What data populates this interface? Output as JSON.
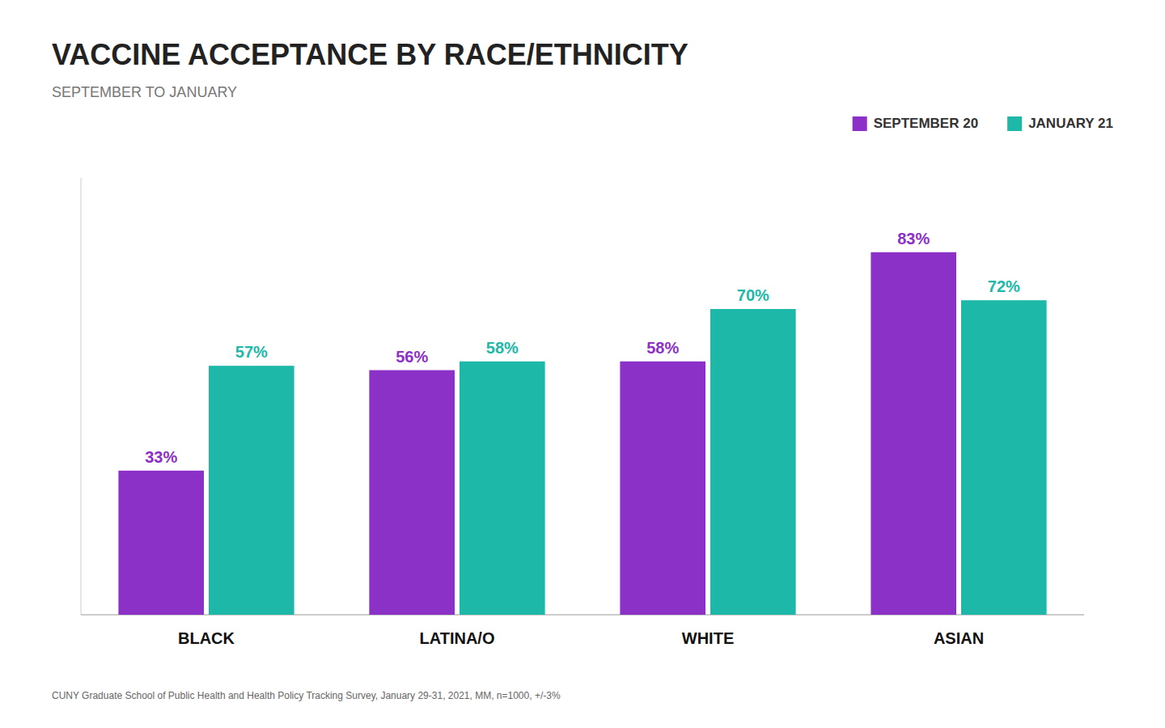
{
  "chart_data": {
    "type": "bar",
    "title": "VACCINE ACCEPTANCE BY RACE/ETHNICITY",
    "subtitle": "SEPTEMBER TO JANUARY",
    "categories": [
      "BLACK",
      "LATINA/O",
      "WHITE",
      "ASIAN"
    ],
    "series": [
      {
        "name": "SEPTEMBER 20",
        "color": "#8B31C7",
        "values": [
          33,
          56,
          58,
          83
        ],
        "value_labels": [
          "33%",
          "56%",
          "58%",
          "83%"
        ]
      },
      {
        "name": "JANUARY 21",
        "color": "#1DB8A8",
        "values": [
          57,
          58,
          70,
          72
        ],
        "value_labels": [
          "57%",
          "58%",
          "70%",
          "72%"
        ]
      }
    ],
    "ylim": [
      0,
      100
    ],
    "grid": false,
    "legend": "top",
    "data_labels": true,
    "tick_labels": "x",
    "annotations": [
      "CUNY Graduate School of Public Health and Health Policy Tracking Survey, January 29-31, 2021, MM, n=1000, +/-3%"
    ]
  }
}
